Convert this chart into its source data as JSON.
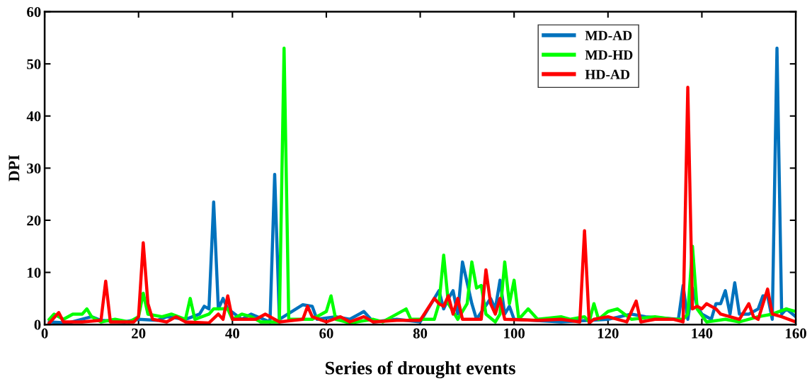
{
  "chart_data": {
    "type": "line",
    "xlabel": "Series of drought events",
    "ylabel": "DPI",
    "xlim": [
      0,
      160
    ],
    "xticks": [
      0,
      20,
      40,
      60,
      80,
      100,
      120,
      140,
      160
    ],
    "ylim": [
      0,
      60
    ],
    "yticks": [
      0,
      10,
      20,
      30,
      40,
      50,
      60
    ],
    "grid": false,
    "legend": "top right",
    "marker": "none",
    "line_style": "solid",
    "series": [
      {
        "name": "MD-AD",
        "color": "#0072bd",
        "x": [
          1,
          5,
          10,
          12,
          17,
          20,
          24,
          26,
          30,
          33,
          34,
          35,
          36,
          37,
          38,
          39,
          42,
          44,
          48,
          49,
          50,
          55,
          57,
          58,
          62,
          65,
          68,
          70,
          75,
          80,
          84,
          85,
          86,
          87,
          88,
          89,
          90,
          91,
          92,
          95,
          96,
          97,
          98,
          99,
          100,
          110,
          120,
          125,
          128,
          135,
          136,
          137,
          138,
          139,
          140,
          142,
          143,
          144,
          145,
          146,
          147,
          148,
          150,
          152,
          153,
          154,
          155,
          156,
          157,
          158,
          160
        ],
        "values": [
          0.5,
          0.3,
          1.5,
          0.8,
          0.5,
          1,
          0.8,
          1.5,
          1,
          2,
          3.5,
          3,
          23.5,
          3,
          5,
          3,
          1,
          2,
          0.5,
          28.8,
          1,
          3.8,
          3.5,
          1,
          1.5,
          1,
          2.5,
          0.5,
          1,
          0.5,
          6.5,
          3,
          5,
          6.5,
          2,
          12,
          8,
          4,
          1,
          5,
          3,
          8.5,
          2,
          3.5,
          1,
          0.5,
          1,
          2,
          1.5,
          1,
          7.5,
          1,
          7,
          3.5,
          2,
          1,
          4,
          4,
          6.5,
          2,
          8,
          2,
          2,
          3,
          5.5,
          5.5,
          1,
          53,
          2,
          3,
          1.5
        ]
      },
      {
        "name": "MD-HD",
        "color": "#00ff00",
        "x": [
          1,
          2,
          4,
          6,
          8,
          9,
          10,
          12,
          15,
          18,
          20,
          21,
          22,
          25,
          27,
          30,
          31,
          32,
          35,
          36,
          38,
          39,
          40,
          42,
          44,
          46,
          50,
          51,
          52,
          55,
          57,
          60,
          61,
          62,
          65,
          70,
          72,
          74,
          77,
          78,
          83,
          84,
          85,
          86,
          88,
          90,
          91,
          92,
          93,
          94,
          96,
          97,
          98,
          99,
          100,
          101,
          103,
          105,
          110,
          112,
          115,
          116,
          117,
          118,
          120,
          122,
          125,
          130,
          134,
          136,
          137,
          138,
          139,
          141,
          145,
          148,
          152,
          155,
          158,
          160
        ],
        "values": [
          1,
          2,
          1,
          2,
          2,
          3,
          1.5,
          0.5,
          1,
          0.5,
          1.5,
          6,
          2,
          1.5,
          2,
          1,
          5,
          1,
          2,
          3,
          3,
          3,
          1,
          2,
          1.5,
          0.5,
          0.5,
          53,
          1,
          1,
          1,
          2.5,
          5.5,
          1,
          0.3,
          1,
          0.5,
          1.5,
          3,
          1,
          1,
          4,
          13.3,
          4,
          1,
          4,
          12,
          7,
          7.5,
          2,
          0.5,
          2,
          12,
          4,
          8.5,
          1,
          3,
          1,
          1.5,
          1,
          1.5,
          0.5,
          4,
          1,
          2.5,
          3,
          1,
          1.5,
          1,
          1,
          2,
          15,
          3,
          0.5,
          1,
          0.5,
          1.5,
          2,
          3,
          2.5
        ]
      },
      {
        "name": "HD-AD",
        "color": "#ff0000",
        "x": [
          1,
          3,
          4,
          8,
          12,
          13,
          14,
          19,
          20,
          21,
          22,
          23,
          26,
          28,
          30,
          35,
          37,
          38,
          39,
          40,
          45,
          47,
          50,
          55,
          56,
          57,
          60,
          63,
          65,
          68,
          70,
          75,
          80,
          83,
          84,
          85,
          86,
          87,
          88,
          89,
          93,
          94,
          95,
          96,
          97,
          98,
          105,
          110,
          114,
          115,
          116,
          117,
          120,
          124,
          126,
          127,
          130,
          134,
          136,
          137,
          138,
          139,
          140,
          141,
          143,
          144,
          146,
          148,
          150,
          151,
          152,
          154,
          155,
          157,
          160
        ],
        "values": [
          0.3,
          2.3,
          0.5,
          0.5,
          0.8,
          8.3,
          0.5,
          0.5,
          1.5,
          15.7,
          4,
          1,
          0.5,
          1.5,
          0.5,
          0.3,
          2,
          1,
          5.5,
          1,
          1,
          2,
          0.5,
          1,
          3.5,
          1.5,
          0.5,
          1.5,
          0.5,
          1.5,
          0.5,
          0.8,
          0.8,
          5,
          4,
          3.5,
          5.5,
          2,
          5,
          1,
          1,
          10.5,
          4,
          2,
          5,
          1,
          0.8,
          1,
          0.5,
          18,
          0.3,
          1,
          1.5,
          0.5,
          4.5,
          0.5,
          1,
          1,
          0.5,
          45.5,
          3,
          3.5,
          3,
          4,
          3,
          2,
          1.5,
          1,
          4,
          1.5,
          1,
          6.8,
          2,
          1.5,
          0.5
        ]
      }
    ]
  }
}
